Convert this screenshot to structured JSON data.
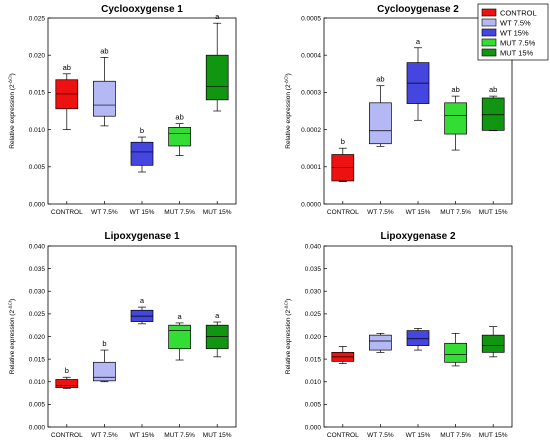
{
  "chart_data": [
    {
      "type": "box",
      "title": "Cyclooxygense 1",
      "ylabel": "Relative expression (2",
      "ylabel_sup": "-ΔCt",
      "ylim": [
        0,
        0.025
      ],
      "yticks": [
        "0.000",
        "0.005",
        "0.010",
        "0.015",
        "0.020",
        "0.025"
      ],
      "categories": [
        "CONTROL",
        "WT 7.5%",
        "WT 15%",
        "MUT 7.5%",
        "MUT 15%"
      ],
      "boxes": [
        {
          "min": 0.01,
          "q1": 0.0128,
          "median": 0.0148,
          "q3": 0.0167,
          "max": 0.0175,
          "letter": "ab"
        },
        {
          "min": 0.0105,
          "q1": 0.0118,
          "median": 0.0133,
          "q3": 0.0165,
          "max": 0.0197,
          "letter": "ab"
        },
        {
          "min": 0.0043,
          "q1": 0.0052,
          "median": 0.007,
          "q3": 0.0083,
          "max": 0.009,
          "letter": "b"
        },
        {
          "min": 0.0065,
          "q1": 0.0078,
          "median": 0.0095,
          "q3": 0.0103,
          "max": 0.0108,
          "letter": "ab"
        },
        {
          "min": 0.0125,
          "q1": 0.014,
          "median": 0.0158,
          "q3": 0.02,
          "max": 0.0243,
          "letter": "a"
        }
      ]
    },
    {
      "type": "box",
      "title": "Cyclooygenase 2",
      "ylabel": "Relative expression (2",
      "ylabel_sup": "-ΔCt",
      "ylim": [
        0,
        0.0005
      ],
      "yticks": [
        "0.0000",
        "0.0001",
        "0.0002",
        "0.0003",
        "0.0004",
        "0.0005"
      ],
      "categories": [
        "CONTROL",
        "WT 7.5%",
        "WT 15%",
        "MUT 7.5%",
        "MUT 15%"
      ],
      "boxes": [
        {
          "min": 6e-05,
          "q1": 6.2e-05,
          "median": 9.8e-05,
          "q3": 0.000133,
          "max": 0.00015,
          "letter": "b"
        },
        {
          "min": 0.000155,
          "q1": 0.000162,
          "median": 0.000197,
          "q3": 0.000272,
          "max": 0.000318,
          "letter": "ab"
        },
        {
          "min": 0.000225,
          "q1": 0.00027,
          "median": 0.000325,
          "q3": 0.00038,
          "max": 0.00042,
          "letter": "a"
        },
        {
          "min": 0.000145,
          "q1": 0.000188,
          "median": 0.000238,
          "q3": 0.000272,
          "max": 0.00029,
          "letter": "ab"
        },
        {
          "min": 0.000197,
          "q1": 0.000198,
          "median": 0.00024,
          "q3": 0.000285,
          "max": 0.00029,
          "letter": "ab"
        }
      ]
    },
    {
      "type": "box",
      "title": "Lipoxygenase 1",
      "ylabel": "Relative expression (2",
      "ylabel_sup": "-ΔCt",
      "ylim": [
        0,
        0.04
      ],
      "yticks": [
        "0.000",
        "0.005",
        "0.010",
        "0.015",
        "0.020",
        "0.025",
        "0.030",
        "0.035",
        "0.040"
      ],
      "categories": [
        "CONTROL",
        "WT 7.5%",
        "WT 15%",
        "MUT 7.5%",
        "MUT 15%"
      ],
      "boxes": [
        {
          "min": 0.0085,
          "q1": 0.0087,
          "median": 0.0092,
          "q3": 0.0105,
          "max": 0.011,
          "letter": "b"
        },
        {
          "min": 0.01,
          "q1": 0.0102,
          "median": 0.011,
          "q3": 0.0143,
          "max": 0.017,
          "letter": "b"
        },
        {
          "min": 0.0228,
          "q1": 0.0233,
          "median": 0.0245,
          "q3": 0.0258,
          "max": 0.0265,
          "letter": "a"
        },
        {
          "min": 0.0148,
          "q1": 0.0173,
          "median": 0.0213,
          "q3": 0.0225,
          "max": 0.023,
          "letter": "a"
        },
        {
          "min": 0.0155,
          "q1": 0.0173,
          "median": 0.02,
          "q3": 0.0225,
          "max": 0.0232,
          "letter": "a"
        }
      ]
    },
    {
      "type": "box",
      "title": "Lipoxygenase 2",
      "ylabel": "Relative expression (2",
      "ylabel_sup": "-ΔCt",
      "ylim": [
        0,
        0.04
      ],
      "yticks": [
        "0.000",
        "0.005",
        "0.010",
        "0.015",
        "0.020",
        "0.025",
        "0.030",
        "0.035",
        "0.040"
      ],
      "categories": [
        "CONTROL",
        "WT 7.5%",
        "WT 15%",
        "MUT 7.5%",
        "MUT 15%"
      ],
      "boxes": [
        {
          "min": 0.014,
          "q1": 0.0145,
          "median": 0.0155,
          "q3": 0.0165,
          "max": 0.0178,
          "letter": ""
        },
        {
          "min": 0.0165,
          "q1": 0.017,
          "median": 0.019,
          "q3": 0.0203,
          "max": 0.0207,
          "letter": ""
        },
        {
          "min": 0.017,
          "q1": 0.018,
          "median": 0.0195,
          "q3": 0.0213,
          "max": 0.0218,
          "letter": ""
        },
        {
          "min": 0.0135,
          "q1": 0.0143,
          "median": 0.016,
          "q3": 0.0185,
          "max": 0.0207,
          "letter": ""
        },
        {
          "min": 0.0155,
          "q1": 0.0165,
          "median": 0.018,
          "q3": 0.0203,
          "max": 0.0222,
          "letter": ""
        }
      ]
    }
  ],
  "legend": {
    "placement": "top-right",
    "items": [
      {
        "label": "CONTROL",
        "color": "#ee1111"
      },
      {
        "label": "WT 7.5%",
        "color": "#b4b8f4"
      },
      {
        "label": "WT 15%",
        "color": "#4545e0"
      },
      {
        "label": "MUT 7.5%",
        "color": "#33dd33"
      },
      {
        "label": "MUT 15%",
        "color": "#109610"
      }
    ]
  }
}
